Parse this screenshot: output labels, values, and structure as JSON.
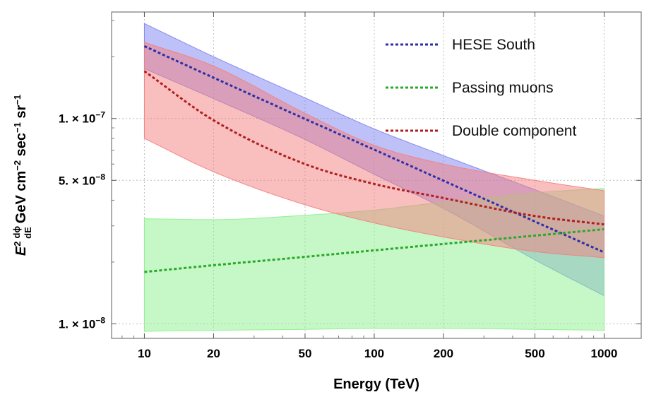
{
  "chart_data": {
    "type": "line",
    "title": "",
    "xlabel": "Energy (TeV)",
    "ylabel": {
      "base": "E",
      "exponent": "2",
      "frac_num": "dϕ",
      "frac_den": "dE",
      "unit_a": "GeV cm",
      "exp_a": "−2",
      "unit_b": " sec",
      "exp_b": "−1",
      "unit_c": " sr",
      "exp_c": "−1"
    },
    "x_scale": "log",
    "y_scale": "log",
    "xlim": [
      7.2,
      1450
    ],
    "ylim": [
      0.0085,
      0.33
    ],
    "grid": true,
    "x_ticks": [
      {
        "value": 10,
        "label": "10"
      },
      {
        "value": 20,
        "label": "20"
      },
      {
        "value": 50,
        "label": "50"
      },
      {
        "value": 100,
        "label": "100"
      },
      {
        "value": 200,
        "label": "200"
      },
      {
        "value": 500,
        "label": "500"
      },
      {
        "value": 1000,
        "label": "1000"
      }
    ],
    "y_ticks": [
      {
        "value": 0.01,
        "mantissa": "1. × 10",
        "exponent": "−8"
      },
      {
        "value": 0.05,
        "mantissa": "5. × 10",
        "exponent": "−8"
      },
      {
        "value": 0.1,
        "mantissa": "1. × 10",
        "exponent": "−7"
      }
    ],
    "y_unit_note": "values in units of 1e-6 GeV cm^-2 sec^-1 sr^-1",
    "x": [
      10,
      20,
      50,
      100,
      200,
      500,
      1000
    ],
    "series": [
      {
        "name": "HESE South",
        "color": "#2b2fa8",
        "band_color": "#7d83f0",
        "values": [
          0.225,
          0.158,
          0.0995,
          0.0705,
          0.0498,
          0.0315,
          0.0223
        ],
        "band_upper": [
          0.29,
          0.2,
          0.126,
          0.089,
          0.066,
          0.045,
          0.0335
        ],
        "band_lower": [
          0.175,
          0.125,
          0.079,
          0.0535,
          0.0365,
          0.0205,
          0.0137
        ]
      },
      {
        "name": "Passing muons",
        "color": "#2aa82a",
        "band_color": "#8df08d",
        "values": [
          0.0179,
          0.0193,
          0.0212,
          0.0228,
          0.0245,
          0.0269,
          0.0289
        ],
        "band_upper": [
          0.0325,
          0.0322,
          0.0338,
          0.0358,
          0.0392,
          0.0435,
          0.0457
        ],
        "band_lower": [
          0.0092,
          0.0093,
          0.0094,
          0.0095,
          0.0095,
          0.0094,
          0.0093
        ]
      },
      {
        "name": "Double component",
        "color": "#b01e1e",
        "band_color": "#f47e7e",
        "values": [
          0.17,
          0.098,
          0.06,
          0.048,
          0.041,
          0.0335,
          0.0305
        ],
        "band_upper": [
          0.235,
          0.18,
          0.106,
          0.074,
          0.06,
          0.05,
          0.0445
        ],
        "band_lower": [
          0.08,
          0.055,
          0.038,
          0.031,
          0.0265,
          0.0225,
          0.021
        ]
      }
    ],
    "legend": {
      "position": "top-right",
      "entries": [
        "HESE South",
        "Passing muons",
        "Double component"
      ]
    }
  }
}
